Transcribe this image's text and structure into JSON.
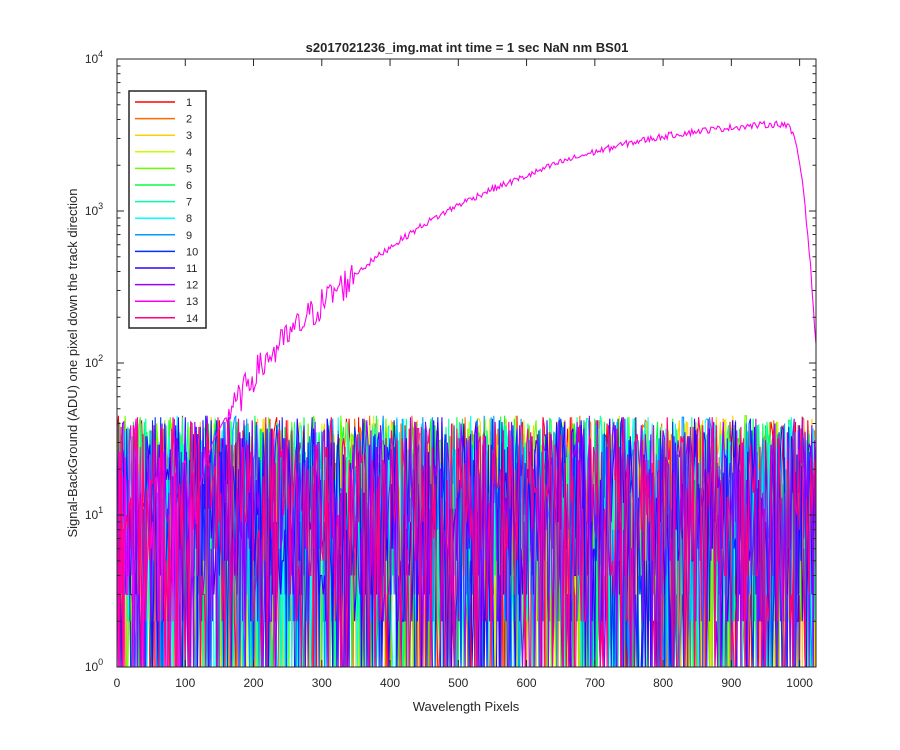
{
  "chart_data": {
    "type": "line",
    "title": "s2017021236_img.mat int time = 1 sec  NaN nm BS01",
    "xlabel": "Wavelength Pixels",
    "ylabel": "Signal-BackGround (ADU) one pixel down the track direction",
    "xlim": [
      0,
      1024
    ],
    "ylim": [
      1,
      10000
    ],
    "yscale": "log",
    "grid": false,
    "legend_position": "top-left",
    "x_ticks": [
      "0",
      "100",
      "200",
      "300",
      "400",
      "500",
      "600",
      "700",
      "800",
      "900",
      "1000"
    ],
    "y_ticks": [
      {
        "base": "10",
        "exp": "0"
      },
      {
        "base": "10",
        "exp": "1"
      },
      {
        "base": "10",
        "exp": "2"
      },
      {
        "base": "10",
        "exp": "3"
      },
      {
        "base": "10",
        "exp": "4"
      }
    ],
    "noise_series_range": [
      1,
      45
    ],
    "series": [
      {
        "name": "1",
        "color": "#ff0000"
      },
      {
        "name": "2",
        "color": "#ff6a00"
      },
      {
        "name": "3",
        "color": "#ffd000"
      },
      {
        "name": "4",
        "color": "#c8ff00"
      },
      {
        "name": "5",
        "color": "#66ff00"
      },
      {
        "name": "6",
        "color": "#00ff44"
      },
      {
        "name": "7",
        "color": "#00ffa0"
      },
      {
        "name": "8",
        "color": "#00ffff"
      },
      {
        "name": "9",
        "color": "#0099ff"
      },
      {
        "name": "10",
        "color": "#0033ff"
      },
      {
        "name": "11",
        "color": "#3300ff"
      },
      {
        "name": "12",
        "color": "#9900ff"
      },
      {
        "name": "13",
        "color": "#ff00ee",
        "profile": [
          [
            0,
            1
          ],
          [
            100,
            1
          ],
          [
            120,
            15
          ],
          [
            140,
            30
          ],
          [
            160,
            45
          ],
          [
            175,
            55
          ],
          [
            200,
            85
          ],
          [
            250,
            150
          ],
          [
            300,
            250
          ],
          [
            350,
            390
          ],
          [
            400,
            580
          ],
          [
            450,
            820
          ],
          [
            500,
            1100
          ],
          [
            550,
            1400
          ],
          [
            600,
            1700
          ],
          [
            650,
            2100
          ],
          [
            700,
            2450
          ],
          [
            750,
            2800
          ],
          [
            800,
            3100
          ],
          [
            850,
            3350
          ],
          [
            900,
            3550
          ],
          [
            950,
            3700
          ],
          [
            975,
            3750
          ],
          [
            985,
            3550
          ],
          [
            995,
            2800
          ],
          [
            1005,
            1500
          ],
          [
            1015,
            500
          ],
          [
            1024,
            130
          ]
        ]
      },
      {
        "name": "14",
        "color": "#ff0080"
      }
    ]
  }
}
